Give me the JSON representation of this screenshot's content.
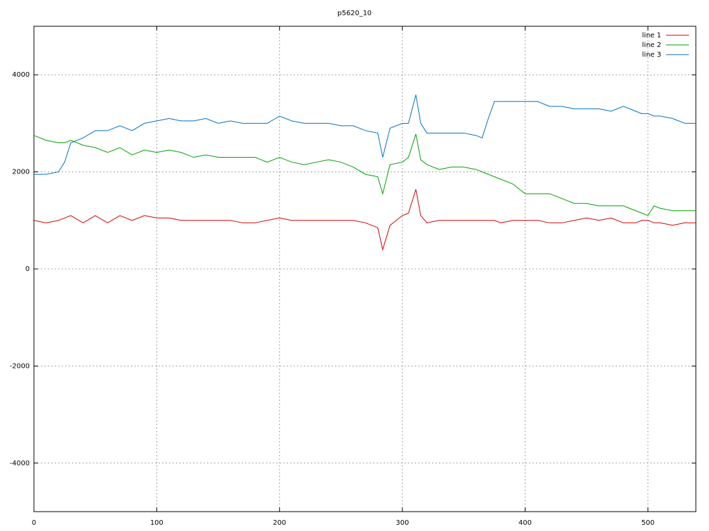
{
  "chart_data": {
    "type": "line",
    "title": "p5620_10",
    "x": [
      0,
      10,
      20,
      25,
      30,
      40,
      50,
      60,
      70,
      80,
      90,
      100,
      110,
      120,
      130,
      140,
      150,
      160,
      170,
      180,
      190,
      200,
      210,
      220,
      230,
      240,
      250,
      260,
      270,
      280,
      284,
      290,
      300,
      305,
      311,
      315,
      320,
      330,
      340,
      350,
      360,
      365,
      370,
      375,
      380,
      390,
      400,
      410,
      420,
      430,
      440,
      450,
      460,
      470,
      480,
      490,
      495,
      500,
      505,
      510,
      520,
      530,
      539
    ],
    "series": [
      {
        "name": "line 1",
        "color": "#d00000",
        "values": [
          1000,
          950,
          1000,
          1050,
          1100,
          950,
          1100,
          950,
          1100,
          1000,
          1100,
          1050,
          1050,
          1000,
          1000,
          1000,
          1000,
          1000,
          950,
          950,
          1000,
          1050,
          1000,
          1000,
          1000,
          1000,
          1000,
          1000,
          950,
          850,
          400,
          900,
          1100,
          1150,
          1640,
          1100,
          950,
          1000,
          1000,
          1000,
          1000,
          1000,
          1000,
          1000,
          950,
          1000,
          1000,
          1000,
          950,
          950,
          1000,
          1050,
          1000,
          1050,
          950,
          950,
          1000,
          1000,
          950,
          950,
          900,
          950,
          950
        ]
      },
      {
        "name": "line 2",
        "color": "#00a000",
        "values": [
          2750,
          2650,
          2600,
          2600,
          2650,
          2550,
          2500,
          2400,
          2500,
          2350,
          2450,
          2400,
          2450,
          2400,
          2300,
          2350,
          2300,
          2300,
          2300,
          2300,
          2200,
          2300,
          2200,
          2150,
          2200,
          2250,
          2200,
          2100,
          1950,
          1900,
          1550,
          2150,
          2200,
          2300,
          2780,
          2250,
          2150,
          2050,
          2100,
          2100,
          2050,
          2000,
          1950,
          1900,
          1850,
          1750,
          1550,
          1550,
          1550,
          1450,
          1350,
          1350,
          1300,
          1300,
          1300,
          1200,
          1150,
          1100,
          1300,
          1250,
          1200,
          1200,
          1200
        ]
      },
      {
        "name": "line 3",
        "color": "#0070c0",
        "values": [
          1950,
          1950,
          2000,
          2200,
          2600,
          2700,
          2850,
          2850,
          2950,
          2850,
          3000,
          3050,
          3100,
          3050,
          3050,
          3100,
          3000,
          3050,
          3000,
          3000,
          3000,
          3150,
          3050,
          3000,
          3000,
          3000,
          2950,
          2950,
          2850,
          2800,
          2300,
          2900,
          3000,
          3000,
          3590,
          3000,
          2800,
          2800,
          2800,
          2800,
          2750,
          2700,
          3100,
          3450,
          3450,
          3450,
          3450,
          3450,
          3350,
          3350,
          3300,
          3300,
          3300,
          3250,
          3350,
          3250,
          3200,
          3200,
          3150,
          3150,
          3100,
          3000,
          3000
        ]
      }
    ],
    "xlim": [
      0,
      539
    ],
    "xticks": [
      0,
      100,
      200,
      300,
      400,
      500
    ],
    "ylim": [
      -5000,
      5000
    ],
    "yticks": [
      -4000,
      -2000,
      0,
      2000,
      4000
    ],
    "grid": true,
    "legend": "top-right"
  }
}
